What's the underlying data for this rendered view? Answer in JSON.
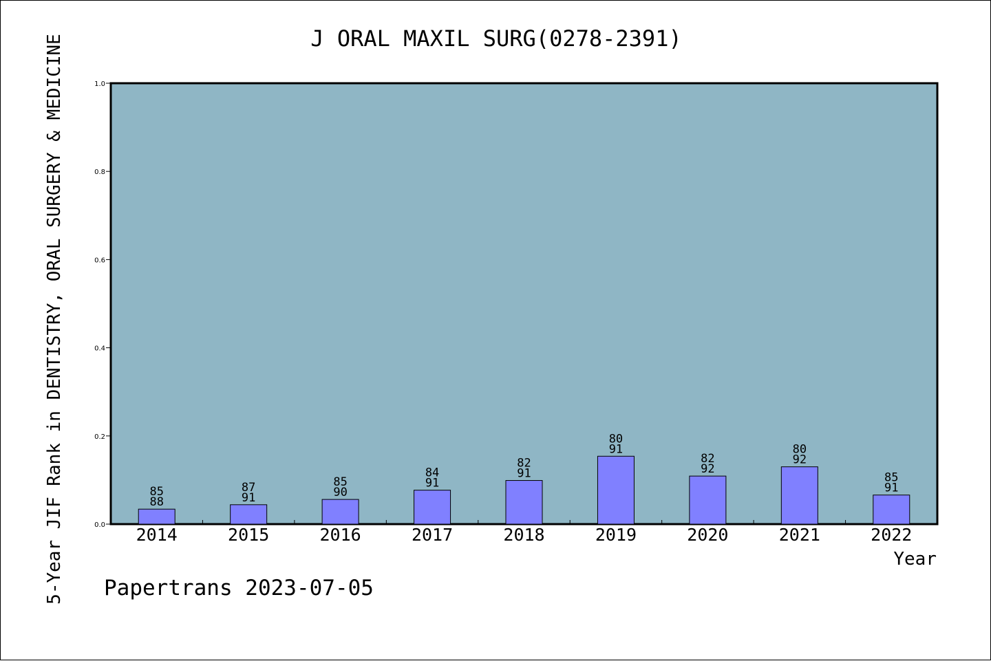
{
  "chart_data": {
    "type": "bar",
    "title": "J ORAL MAXIL SURG(0278-2391)",
    "xlabel": "Year",
    "ylabel": "5-Year JIF Rank in DENTISTRY, ORAL SURGERY & MEDICINE",
    "ylim": [
      0.0,
      1.0
    ],
    "yticks": [
      "0.0",
      "0.2",
      "0.4",
      "0.6",
      "0.8",
      "1.0"
    ],
    "categories": [
      "2014",
      "2015",
      "2016",
      "2017",
      "2018",
      "2019",
      "2020",
      "2021",
      "2022"
    ],
    "values": [
      0.034,
      0.044,
      0.056,
      0.077,
      0.099,
      0.154,
      0.109,
      0.13,
      0.066
    ],
    "labels_top": [
      "85",
      "87",
      "85",
      "84",
      "82",
      "80",
      "82",
      "80",
      "85"
    ],
    "labels_bottom": [
      "88",
      "91",
      "90",
      "91",
      "91",
      "91",
      "92",
      "92",
      "91"
    ],
    "grid": false,
    "colors": {
      "plot_background": "#8fb6c5",
      "bar_fill": "#8080ff",
      "bar_stroke": "#000000"
    }
  },
  "footer": "Papertrans 2023-07-05"
}
